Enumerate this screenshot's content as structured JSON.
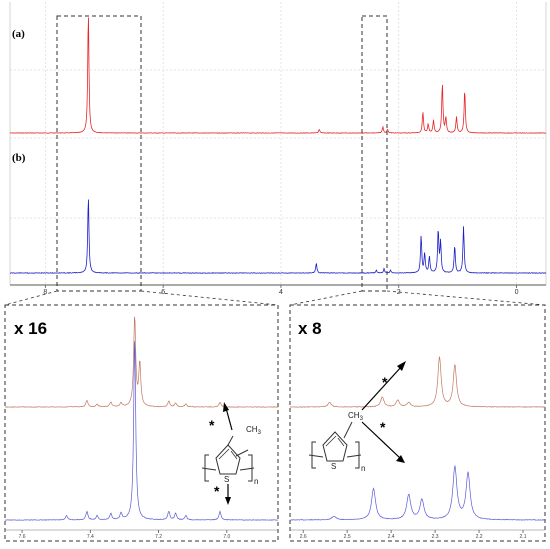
{
  "panels": {
    "a_label": "(a)",
    "b_label": "(b)",
    "zoom_left_label": "x 16",
    "zoom_right_label": "x 8"
  },
  "structure": {
    "methyl": "CH",
    "methyl_sub": "3",
    "sulfur": "S",
    "repeat": "n",
    "asterisk": "*"
  },
  "colors": {
    "spectrum_a": "#e8262a",
    "spectrum_b": "#1f1fc8",
    "zoom_a": "#c07860",
    "zoom_b": "#5a5ad8",
    "grid": "#cccccc",
    "axis": "#555555",
    "dashed_box": "#333333"
  },
  "chart_data": [
    {
      "type": "line",
      "panel": "main",
      "x_axis": {
        "direction": "reversed",
        "range": [
          8.6,
          -0.5
        ],
        "tick_labels": [
          "8",
          "6",
          "4",
          "2",
          "0"
        ],
        "tick_values": [
          8,
          6,
          4,
          2,
          0
        ]
      },
      "grid": true,
      "series": [
        {
          "panel": "(a)",
          "peaks": [
            {
              "x": 7.27,
              "height": 0.98
            },
            {
              "x": 3.35,
              "height": 0.03
            },
            {
              "x": 2.27,
              "height": 0.05
            },
            {
              "x": 2.19,
              "height": 0.03
            },
            {
              "x": 1.59,
              "height": 0.17
            },
            {
              "x": 1.5,
              "height": 0.07
            },
            {
              "x": 1.41,
              "height": 0.1
            },
            {
              "x": 1.26,
              "height": 0.4
            },
            {
              "x": 1.2,
              "height": 0.12
            },
            {
              "x": 1.02,
              "height": 0.13
            },
            {
              "x": 0.88,
              "height": 0.35
            }
          ]
        },
        {
          "panel": "(b)",
          "peaks": [
            {
              "x": 7.27,
              "height": 0.56
            },
            {
              "x": 3.4,
              "height": 0.07
            },
            {
              "x": 2.38,
              "height": 0.02
            },
            {
              "x": 2.25,
              "height": 0.03
            },
            {
              "x": 2.14,
              "height": 0.02
            },
            {
              "x": 1.62,
              "height": 0.27
            },
            {
              "x": 1.56,
              "height": 0.14
            },
            {
              "x": 1.48,
              "height": 0.12
            },
            {
              "x": 1.33,
              "height": 0.31
            },
            {
              "x": 1.29,
              "height": 0.22
            },
            {
              "x": 1.05,
              "height": 0.2
            },
            {
              "x": 0.9,
              "height": 0.34
            }
          ]
        }
      ]
    },
    {
      "type": "line",
      "panel": "zoom-aromatic",
      "magnification": "x 16",
      "x_axis": {
        "direction": "reversed",
        "range": [
          7.65,
          6.85
        ],
        "tick_labels": [
          "7.6",
          "7.4",
          "7.2",
          "7.0"
        ],
        "tick_values": [
          7.6,
          7.4,
          7.2,
          7.0
        ]
      },
      "series": [
        {
          "panel": "(a)",
          "peaks": [
            {
              "x": 7.41,
              "height": 0.07
            },
            {
              "x": 7.38,
              "height": 0.03
            },
            {
              "x": 7.34,
              "height": 0.05
            },
            {
              "x": 7.31,
              "height": 0.04
            },
            {
              "x": 7.27,
              "height": 0.95
            },
            {
              "x": 7.255,
              "height": 0.45
            },
            {
              "x": 7.17,
              "height": 0.06
            },
            {
              "x": 7.15,
              "height": 0.04
            },
            {
              "x": 7.12,
              "height": 0.03
            },
            {
              "x": 7.02,
              "height": 0.05
            }
          ]
        },
        {
          "panel": "(b)",
          "peaks": [
            {
              "x": 7.47,
              "height": 0.02
            },
            {
              "x": 7.41,
              "height": 0.04
            },
            {
              "x": 7.38,
              "height": 0.02
            },
            {
              "x": 7.34,
              "height": 0.03
            },
            {
              "x": 7.31,
              "height": 0.03
            },
            {
              "x": 7.27,
              "height": 0.85
            },
            {
              "x": 7.17,
              "height": 0.04
            },
            {
              "x": 7.15,
              "height": 0.03
            },
            {
              "x": 7.12,
              "height": 0.02
            },
            {
              "x": 7.02,
              "height": 0.04
            }
          ]
        }
      ]
    },
    {
      "type": "line",
      "panel": "zoom-methyl",
      "magnification": "x 8",
      "x_axis": {
        "direction": "reversed",
        "range": [
          2.63,
          2.05
        ],
        "tick_labels": [
          "2.6",
          "2.5",
          "2.4",
          "2.3",
          "2.2",
          "2.1"
        ],
        "tick_values": [
          2.6,
          2.5,
          2.4,
          2.3,
          2.2,
          2.1
        ]
      },
      "series": [
        {
          "panel": "(a)",
          "peaks": [
            {
              "x": 2.54,
              "height": 0.04
            },
            {
              "x": 2.42,
              "height": 0.09
            },
            {
              "x": 2.385,
              "height": 0.06
            },
            {
              "x": 2.36,
              "height": 0.04
            },
            {
              "x": 2.29,
              "height": 0.45
            },
            {
              "x": 2.255,
              "height": 0.38
            }
          ]
        },
        {
          "panel": "(b)",
          "peaks": [
            {
              "x": 2.53,
              "height": 0.03
            },
            {
              "x": 2.44,
              "height": 0.25
            },
            {
              "x": 2.36,
              "height": 0.2
            },
            {
              "x": 2.33,
              "height": 0.16
            },
            {
              "x": 2.255,
              "height": 0.42
            },
            {
              "x": 2.225,
              "height": 0.37
            }
          ]
        }
      ]
    }
  ]
}
